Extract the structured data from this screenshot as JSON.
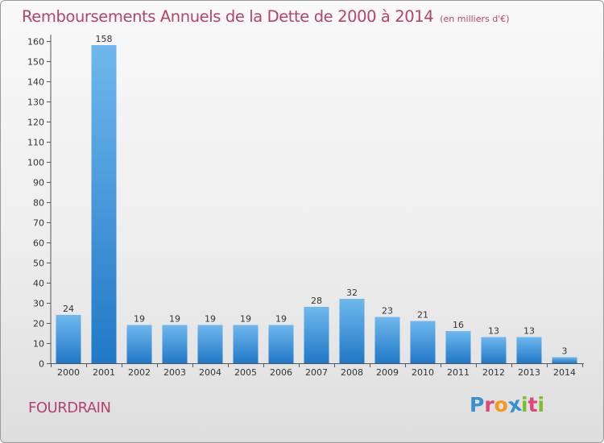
{
  "header": {
    "title": "Remboursements Annuels de la Dette de 2000 à 2014",
    "unit": "(en milliers d'€)"
  },
  "footer": {
    "commune": "FOURDRAIN",
    "logo": {
      "text": "Proxiti",
      "letter_colors": [
        "#3a8fd0",
        "#e0457b",
        "#f39a1c",
        "#3a8fd0",
        "#7cbf2a",
        "#e0457b",
        "#7cbf2a"
      ]
    }
  },
  "colors": {
    "title": "#b3436e",
    "bar_light": "#6fb8ee",
    "bar_dark": "#2178c6",
    "axis": "#555555",
    "grid": "#cccccc"
  },
  "chart_data": {
    "type": "bar",
    "title": "Remboursements Annuels de la Dette de 2000 à 2014",
    "xlabel": "",
    "ylabel": "",
    "categories": [
      "2000",
      "2001",
      "2002",
      "2003",
      "2004",
      "2005",
      "2006",
      "2007",
      "2008",
      "2009",
      "2010",
      "2011",
      "2012",
      "2013",
      "2014"
    ],
    "values": [
      24,
      158,
      19,
      19,
      19,
      19,
      19,
      28,
      32,
      23,
      21,
      16,
      13,
      13,
      3
    ],
    "ylim": [
      0,
      160
    ],
    "yticks": [
      0,
      10,
      20,
      30,
      40,
      50,
      60,
      70,
      80,
      90,
      100,
      110,
      120,
      130,
      140,
      150,
      160
    ],
    "grid": false,
    "legend": "none"
  }
}
